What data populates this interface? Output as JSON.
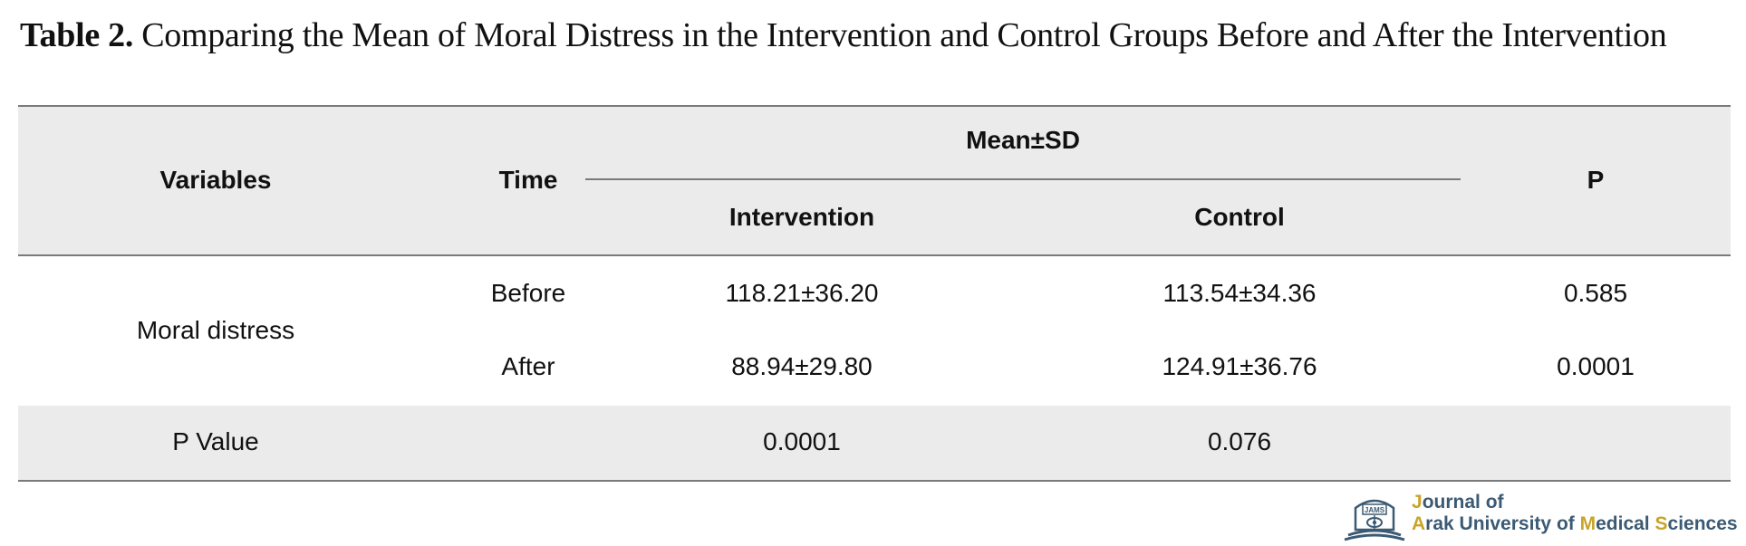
{
  "caption": {
    "label": "Table 2.",
    "text": " Comparing the Mean of Moral Distress in the Intervention and Control Groups Before and After the Intervention"
  },
  "table": {
    "headers": {
      "variables": "Variables",
      "time": "Time",
      "group_header": "Mean±SD",
      "intervention": "Intervention",
      "control": "Control",
      "p": "P"
    },
    "variable_name": "Moral distress",
    "rows": [
      {
        "time": "Before",
        "intervention": "118.21±36.20",
        "control": "113.54±34.36",
        "p": "0.585"
      },
      {
        "time": "After",
        "intervention": "88.94±29.80",
        "control": "124.91±36.76",
        "p": "0.0001"
      }
    ],
    "pvalue_row": {
      "label": "P Value",
      "intervention": "0.0001",
      "control": "0.076"
    }
  },
  "journal_logo": {
    "line1": "Journal of",
    "line2": "Arak University of Medical Sciences",
    "mark_text": "JAMS",
    "colors": {
      "text": "#3b5a73",
      "accent": "#c8a428"
    }
  },
  "colors": {
    "header_band": "#ebebeb",
    "rule": "#7a7a7a"
  }
}
